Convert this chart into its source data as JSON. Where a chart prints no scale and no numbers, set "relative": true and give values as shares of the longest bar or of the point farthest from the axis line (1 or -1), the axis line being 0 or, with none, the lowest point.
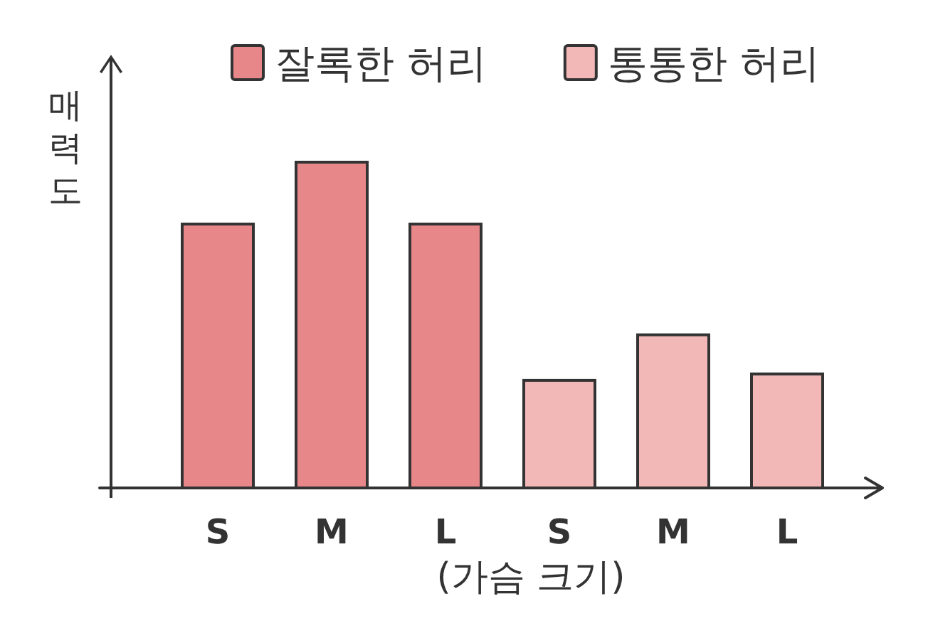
{
  "chart_data": {
    "type": "bar",
    "relative": true,
    "xlabel": "(가슴 크기)",
    "ylabel": "매력도",
    "legend": "top",
    "categories": [
      "S",
      "M",
      "L",
      "S",
      "M",
      "L"
    ],
    "series": [
      {
        "name": "잘록한 허리",
        "color": "#e8878a",
        "values": [
          0.81,
          1,
          0.81,
          null,
          null,
          null
        ]
      },
      {
        "name": "통통한 허리",
        "color": "#f2b8b8",
        "values": [
          null,
          null,
          null,
          0.33,
          0.47,
          0.35
        ]
      }
    ]
  }
}
